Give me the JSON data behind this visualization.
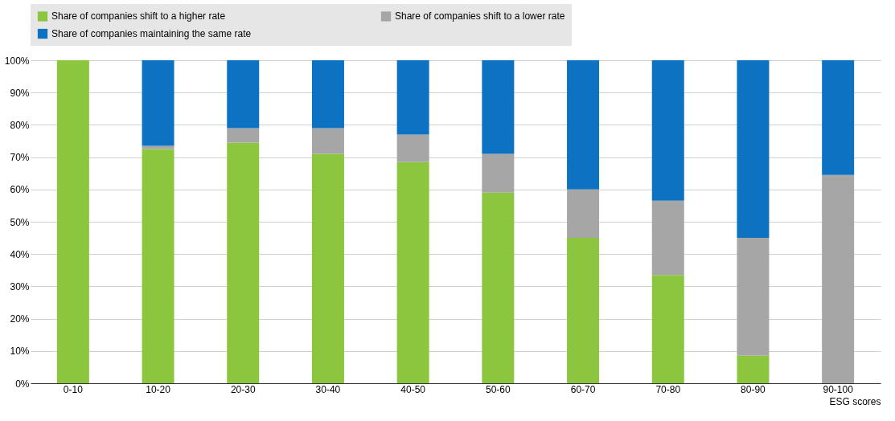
{
  "chart_data": {
    "type": "bar",
    "stacked": true,
    "xlabel": "ESG scores",
    "categories": [
      "0-10",
      "10-20",
      "20-30",
      "30-40",
      "40-50",
      "50-60",
      "60-70",
      "70-80",
      "80-90",
      "90-100"
    ],
    "series": [
      {
        "name": "Share of companies shift to a higher rate",
        "color": "#8cc63f",
        "values": [
          100,
          72.5,
          74.5,
          71,
          68.5,
          59,
          45,
          33.5,
          8.5,
          0
        ]
      },
      {
        "name": "Share of companies shift to a lower rate",
        "color": "#a6a6a6",
        "values": [
          0,
          1,
          4.5,
          8,
          8.5,
          12,
          15,
          23,
          36.5,
          64.5
        ]
      },
      {
        "name": "Share of companies maintaining the same rate",
        "color": "#0c72c1",
        "values": [
          0,
          26.5,
          21,
          21,
          23,
          29,
          40,
          43.5,
          55,
          35.5
        ]
      }
    ],
    "ylim": [
      0,
      100
    ],
    "yticks": [
      {
        "value": 0,
        "label": "0%"
      },
      {
        "value": 10,
        "label": "10%"
      },
      {
        "value": 20,
        "label": "20%"
      },
      {
        "value": 30,
        "label": "30%"
      },
      {
        "value": 40,
        "label": "40%"
      },
      {
        "value": 50,
        "label": "50%"
      },
      {
        "value": 60,
        "label": "60%"
      },
      {
        "value": 70,
        "label": "70%"
      },
      {
        "value": 80,
        "label": "80%"
      },
      {
        "value": 90,
        "label": "90%"
      },
      {
        "value": 100,
        "label": "100%"
      }
    ],
    "grid": "y",
    "legend": "top"
  }
}
